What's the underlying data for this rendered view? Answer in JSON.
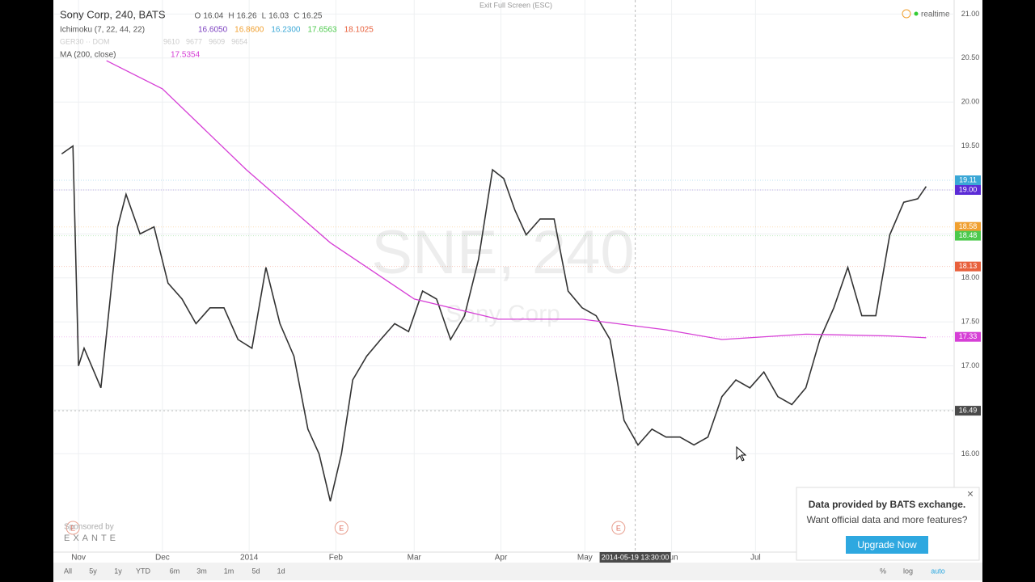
{
  "chart_data": {
    "type": "line",
    "title": "Sony Corp, 240, BATS",
    "watermark": "SNE, 240",
    "watermark_sub": "Sony Corp",
    "ohlc": [
      {
        "label": "O",
        "value": "16.04"
      },
      {
        "label": "H",
        "value": "16.26"
      },
      {
        "label": "L",
        "value": "16.03"
      },
      {
        "label": "C",
        "value": "16.25"
      }
    ],
    "ichimoku": {
      "name": "Ichimoku (7, 22, 44, 22)",
      "values": [
        {
          "value": "16.6050",
          "color": "#7b3fbf"
        },
        {
          "value": "16.8600",
          "color": "#f0a030"
        },
        {
          "value": "16.2300",
          "color": "#3aa7d6"
        },
        {
          "value": "17.6563",
          "color": "#4cc94c"
        },
        {
          "value": "18.1025",
          "color": "#e8603c"
        }
      ]
    },
    "compare": {
      "name": "GER30 ·· DOM",
      "values": [
        "9610",
        "9677",
        "9609",
        "9654"
      ]
    },
    "ma_value": "17.5354",
    "series": [
      {
        "color": "#333333",
        "x": [
          -6,
          -2,
          0,
          2,
          8,
          14,
          17,
          22,
          27,
          32,
          37,
          42,
          47,
          52,
          57,
          62,
          67,
          72,
          77,
          82,
          86,
          90,
          94,
          98,
          103,
          108,
          113,
          118,
          123,
          128,
          133,
          138,
          143,
          148,
          152,
          156,
          160,
          165,
          170,
          175,
          180,
          185,
          190,
          195,
          200,
          205,
          210,
          215,
          220,
          225,
          230,
          235,
          240,
          245,
          250,
          255,
          260,
          265,
          270,
          275,
          280,
          285,
          290,
          295,
          300,
          303
        ],
        "values": [
          19.41,
          19.5,
          17.0,
          17.2,
          16.75,
          18.58,
          18.95,
          18.5,
          18.58,
          17.94,
          17.76,
          17.48,
          17.66,
          17.66,
          17.3,
          17.2,
          18.12,
          17.48,
          17.11,
          16.28,
          16.0,
          15.46,
          16.0,
          16.84,
          17.11,
          17.3,
          17.48,
          17.39,
          17.85,
          17.76,
          17.3,
          17.57,
          18.21,
          19.23,
          19.13,
          18.77,
          18.49,
          18.67,
          18.67,
          17.85,
          17.66,
          17.57,
          17.3,
          16.38,
          16.1,
          16.28,
          16.19,
          16.19,
          16.1,
          16.19,
          16.65,
          16.84,
          16.75,
          16.93,
          16.65,
          16.56,
          16.75,
          17.3,
          17.66,
          18.12,
          17.57,
          17.57,
          18.49,
          18.86,
          18.9,
          19.04
        ]
      },
      {
        "name": "MA (200, close)",
        "color": "#d63fd6",
        "x": [
          10,
          30,
          60,
          90,
          120,
          150,
          180,
          210,
          230,
          260,
          290,
          303
        ],
        "values": [
          20.47,
          20.15,
          19.23,
          18.4,
          17.76,
          17.53,
          17.53,
          17.41,
          17.3,
          17.36,
          17.34,
          17.32
        ]
      }
    ],
    "xlim": [
      -8.7,
      313
    ],
    "xticks": [
      {
        "value": 0,
        "label": "Nov"
      },
      {
        "value": 30,
        "label": "Dec"
      },
      {
        "value": 61,
        "label": "2014"
      },
      {
        "value": 92,
        "label": "Feb"
      },
      {
        "value": 120,
        "label": "Mar"
      },
      {
        "value": 151,
        "label": "Apr"
      },
      {
        "value": 181,
        "label": "May"
      },
      {
        "value": 212,
        "label": "Jun"
      },
      {
        "value": 242,
        "label": "Jul"
      }
    ],
    "ylim": [
      14.91,
      21.16
    ],
    "yticks": [
      {
        "value": 16,
        "label": "16.00"
      },
      {
        "value": 16.5,
        "label": "16.50"
      },
      {
        "value": 17,
        "label": "17.00"
      },
      {
        "value": 17.5,
        "label": "17.50"
      },
      {
        "value": 18,
        "label": "18.00"
      },
      {
        "value": 18.5,
        "label": "18.50"
      },
      {
        "value": 19,
        "label": "19.00"
      },
      {
        "value": 19.5,
        "label": "19.50"
      },
      {
        "value": 20,
        "label": "20.00"
      },
      {
        "value": 20.5,
        "label": "20.50"
      },
      {
        "value": 21,
        "label": "21.00"
      }
    ],
    "grid": true,
    "price_labels": [
      {
        "value": 19.11,
        "color": "#3aa7d6"
      },
      {
        "value": 19,
        "label": "19.00",
        "color": "#5b2bd6"
      },
      {
        "value": 18.58,
        "color": "#f0a030"
      },
      {
        "value": 18.48,
        "color": "#4cc94c"
      },
      {
        "value": 18.13,
        "color": "#e8603c"
      },
      {
        "value": 17.33,
        "color": "#d63fd6"
      }
    ],
    "crosshair": {
      "x": 199,
      "label": "2014-05-19 13:30:00",
      "y": 16.49
    },
    "events": {
      "x": [
        -2,
        94,
        193
      ],
      "labels": [
        "E",
        "E",
        "E"
      ]
    }
  },
  "ui": {
    "exit": "Exit Full Screen (ESC)",
    "realtime": "realtime",
    "sponsored": "Sponsored by",
    "sponsor": "EXANTE",
    "ranges": [
      "All",
      "5y",
      "1y",
      "YTD",
      "6m",
      "3m",
      "1m",
      "5d",
      "1d"
    ],
    "scale_buttons": [
      "%",
      "log",
      "auto"
    ],
    "popup": {
      "close": "×",
      "title": "Data provided by BATS exchange.",
      "text": "Want official data and more features?",
      "button": "Upgrade Now"
    }
  }
}
